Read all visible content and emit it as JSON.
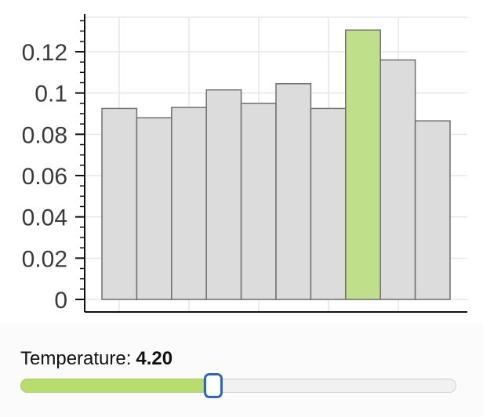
{
  "chart_data": {
    "type": "bar",
    "bins": 10,
    "values": [
      0.0925,
      0.088,
      0.093,
      0.1015,
      0.095,
      0.1045,
      0.0925,
      0.1305,
      0.116,
      0.0865
    ],
    "highlight_index": 7,
    "ylim": [
      0,
      0.13
    ],
    "yticks": [
      0,
      0.02,
      0.04,
      0.06,
      0.08,
      0.1,
      0.12
    ],
    "ytick_labels": [
      "0",
      "0.02",
      "0.04",
      "0.06",
      "0.08",
      "0.1",
      "0.12"
    ],
    "grid": true,
    "title": "",
    "xlabel": "",
    "ylabel": "",
    "colors": {
      "bar": "#dcdcdc",
      "bar_stroke": "#6e6e6e",
      "highlight": "#bfdf8a",
      "highlight_stroke": "#6e6e6e",
      "grid": "#e6e6e6",
      "axis": "#111111"
    }
  },
  "controls": {
    "temperature_label": "Temperature:",
    "temperature_value": "4.20",
    "slider_fraction": 0.42,
    "colors": {
      "fill": "#b9dc70",
      "thumb_border": "#2a66c8"
    }
  }
}
